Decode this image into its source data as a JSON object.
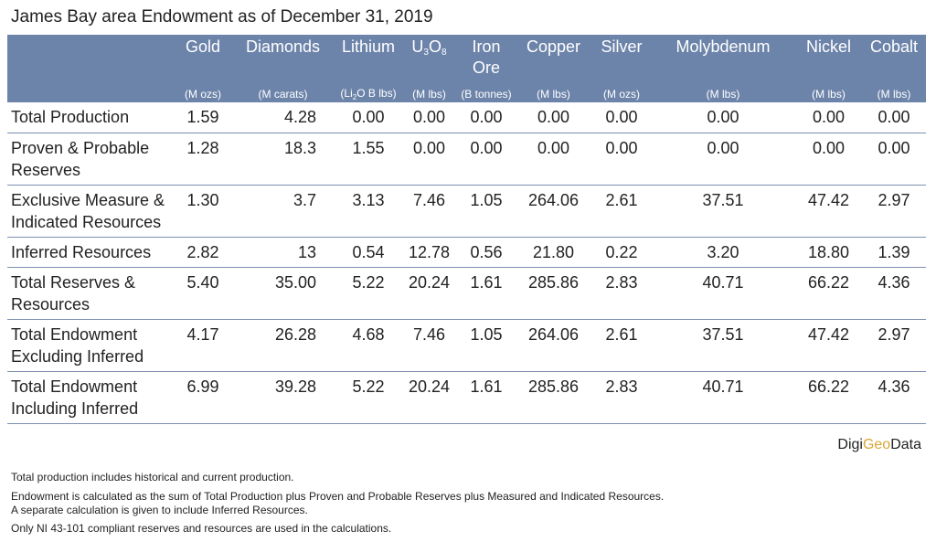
{
  "title": "James Bay area Endowment as of December 31, 2019",
  "columns": [
    {
      "name": "Gold",
      "unit": "(M ozs)"
    },
    {
      "name": "Diamonds",
      "unit": "(M carats)"
    },
    {
      "name": "Lithium",
      "unit_parts": [
        "(Li",
        "2",
        "O B lbs)"
      ]
    },
    {
      "name_parts": [
        "U",
        "3",
        "O",
        "8"
      ],
      "unit": "(M lbs)"
    },
    {
      "name": "Iron Ore",
      "unit": "(B tonnes)"
    },
    {
      "name": "Copper",
      "unit": "(M lbs)"
    },
    {
      "name": "Silver",
      "unit": "(M ozs)"
    },
    {
      "name": "Molybdenum",
      "unit": "(M lbs)"
    },
    {
      "name": "Nickel",
      "unit": "(M lbs)"
    },
    {
      "name": "Cobalt",
      "unit": "(M lbs)"
    }
  ],
  "rows": [
    {
      "label": "Total Production",
      "values": [
        "1.59",
        "4.28",
        "0.00",
        "0.00",
        "0.00",
        "0.00",
        "0.00",
        "0.00",
        "0.00",
        "0.00"
      ]
    },
    {
      "label": "Proven & Probable Reserves",
      "values": [
        "1.28",
        "18.3",
        "1.55",
        "0.00",
        "0.00",
        "0.00",
        "0.00",
        "0.00",
        "0.00",
        "0.00"
      ]
    },
    {
      "label": "Exclusive Measure & Indicated Resources",
      "values": [
        "1.30",
        "3.7",
        "3.13",
        "7.46",
        "1.05",
        "264.06",
        "2.61",
        "37.51",
        "47.42",
        "2.97"
      ]
    },
    {
      "label": "Inferred Resources",
      "values": [
        "2.82",
        "13",
        "0.54",
        "12.78",
        "0.56",
        "21.80",
        "0.22",
        "3.20",
        "18.80",
        "1.39"
      ]
    },
    {
      "label": "Total Reserves & Resources",
      "values": [
        "5.40",
        "35.00",
        "5.22",
        "20.24",
        "1.61",
        "285.86",
        "2.83",
        "40.71",
        "66.22",
        "4.36"
      ]
    },
    {
      "label": "Total Endowment Excluding Inferred",
      "values": [
        "4.17",
        "26.28",
        "4.68",
        "7.46",
        "1.05",
        "264.06",
        "2.61",
        "37.51",
        "47.42",
        "2.97"
      ]
    },
    {
      "label": "Total Endowment Including Inferred",
      "values": [
        "6.99",
        "39.28",
        "5.22",
        "20.24",
        "1.61",
        "285.86",
        "2.83",
        "40.71",
        "66.22",
        "4.36"
      ]
    }
  ],
  "logo": {
    "part1": "Digi",
    "part2": "Geo",
    "part3": "Data"
  },
  "notes": [
    "Total production includes historical and current production.",
    "Endowment is calculated as the sum of Total Production plus Proven and Probable Reserves plus Measured and Indicated Resources.",
    "A separate calculation is given to include Inferred Resources.",
    "Only NI 43-101 compliant reserves and resources are used in the calculations."
  ],
  "colors": {
    "header_bg": "#6d84aa",
    "row_rule": "#7d8fb2",
    "logo_accent": "#d9a535"
  }
}
